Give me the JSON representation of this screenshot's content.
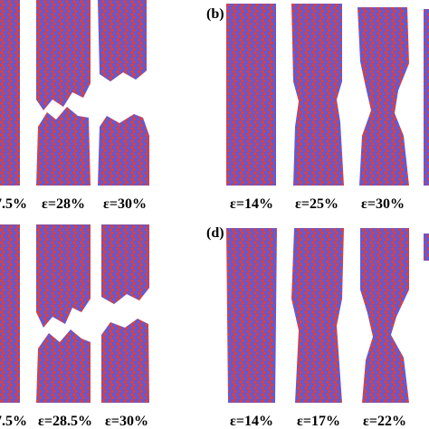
{
  "panels": {
    "top_left": {
      "captions": [
        "7.5%",
        "ε=28%",
        "ε=30%"
      ]
    },
    "top_right": {
      "label": "(b)",
      "captions": [
        "ε=14%",
        "ε=25%",
        "ε=30%"
      ]
    },
    "bottom_left": {
      "captions": [
        "7.5%",
        "ε=28.5%",
        "ε=30%"
      ]
    },
    "bottom_right": {
      "label": "(d)",
      "captions": [
        "ε=14%",
        "ε=17%",
        "ε=22%"
      ]
    }
  }
}
